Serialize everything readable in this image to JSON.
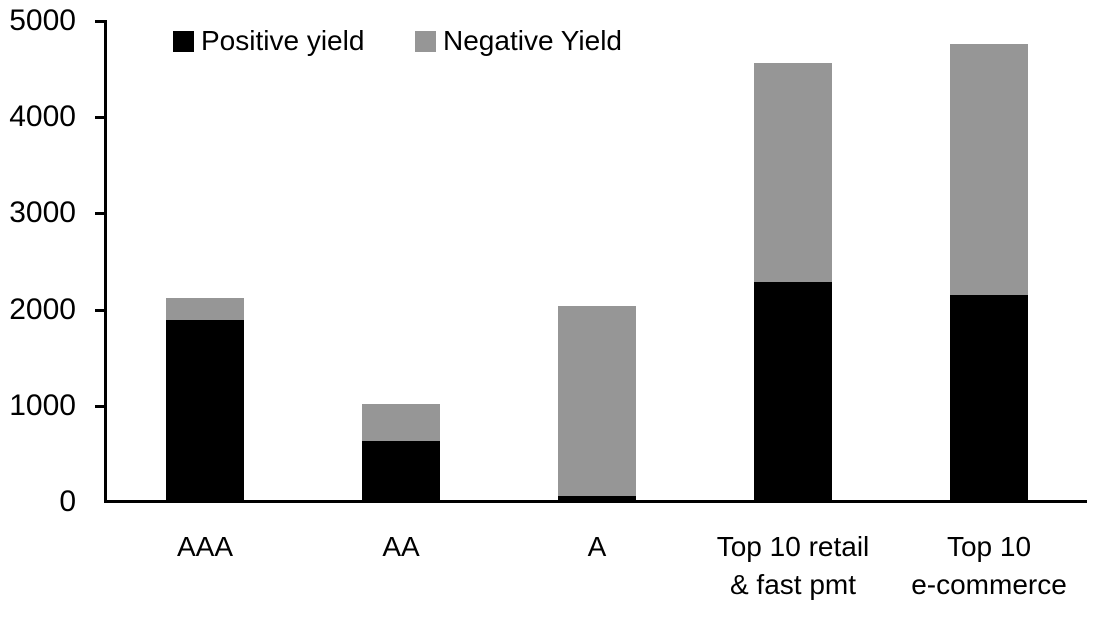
{
  "chart_data": {
    "type": "bar",
    "stacked": true,
    "title": "",
    "xlabel": "",
    "ylabel": "",
    "categories": [
      "AAA",
      "AA",
      "A",
      "Top 10 retail\n& fast pmt",
      "Top 10\ne-commerce"
    ],
    "series": [
      {
        "name": "Positive yield",
        "color": "#000000",
        "values": [
          1885,
          620,
          50,
          2275,
          2145
        ]
      },
      {
        "name": "Negative Yield",
        "color": "#969696",
        "values": [
          225,
          385,
          1980,
          2280,
          2605
        ]
      }
    ],
    "totals": [
      2110,
      1005,
      2030,
      4555,
      4750
    ],
    "ylim": [
      0,
      5000
    ],
    "yticks": [
      0,
      1000,
      2000,
      3000,
      4000,
      5000
    ],
    "grid": false,
    "legend_position": "top",
    "axis_color": "#000000",
    "background_color": "#ffffff"
  }
}
